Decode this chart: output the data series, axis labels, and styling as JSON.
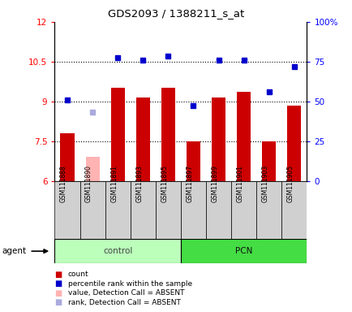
{
  "title": "GDS2093 / 1388211_s_at",
  "samples": [
    "GSM111888",
    "GSM111890",
    "GSM111891",
    "GSM111893",
    "GSM111895",
    "GSM111897",
    "GSM111899",
    "GSM111901",
    "GSM111903",
    "GSM111905"
  ],
  "control_count": 5,
  "pcn_count": 5,
  "bar_values": [
    7.8,
    6.9,
    9.5,
    9.15,
    9.5,
    7.5,
    9.15,
    9.35,
    7.5,
    8.85
  ],
  "bar_absent": [
    false,
    true,
    false,
    false,
    false,
    false,
    false,
    false,
    false,
    false
  ],
  "bar_color": "#cc0000",
  "bar_color_absent": "#ffb3b3",
  "rank_values": [
    9.05,
    8.6,
    10.65,
    10.55,
    10.7,
    8.85,
    10.55,
    10.55,
    9.35,
    10.3
  ],
  "rank_absent": [
    false,
    true,
    false,
    false,
    false,
    false,
    false,
    false,
    false,
    false
  ],
  "rank_color": "#0000cc",
  "rank_color_absent": "#aaaadd",
  "ylim_left": [
    6,
    12
  ],
  "ylim_right": [
    0,
    100
  ],
  "yticks_left": [
    6,
    7.5,
    9,
    10.5,
    12
  ],
  "yticks_right": [
    0,
    25,
    50,
    75,
    100
  ],
  "ytick_labels_right": [
    "0",
    "25",
    "50",
    "75",
    "100%"
  ],
  "hlines": [
    7.5,
    9.0,
    10.5
  ],
  "control_label": "control",
  "pcn_label": "PCN",
  "agent_label": "agent",
  "control_bg": "#bbffbb",
  "pcn_bg": "#44dd44",
  "sample_bg": "#d0d0d0",
  "base_value": 6,
  "bar_width": 0.55,
  "legend": [
    {
      "label": "count",
      "color": "#cc0000"
    },
    {
      "label": "percentile rank within the sample",
      "color": "#0000cc"
    },
    {
      "label": "value, Detection Call = ABSENT",
      "color": "#ffb3b3"
    },
    {
      "label": "rank, Detection Call = ABSENT",
      "color": "#aaaadd"
    }
  ]
}
